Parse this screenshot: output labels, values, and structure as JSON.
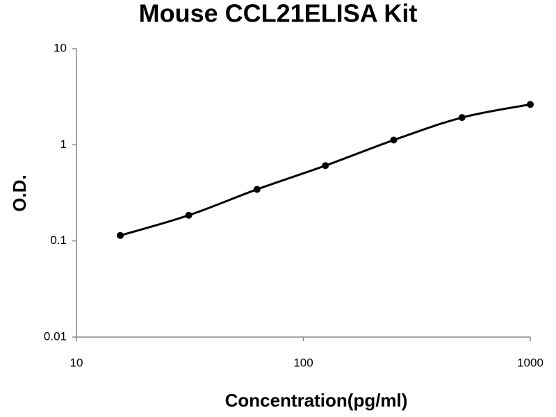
{
  "chart_data": {
    "type": "line",
    "title": "Mouse CCL21ELISA Kit",
    "x_label": "Concentration(pg/ml)",
    "y_label": "O.D.",
    "x": [
      15.6,
      31.25,
      62.5,
      125,
      250,
      500,
      1000
    ],
    "values": [
      0.114,
      0.185,
      0.344,
      0.607,
      1.12,
      1.92,
      2.63
    ],
    "color": "#000000",
    "x_log": true,
    "y_log": true,
    "xlim": [
      10,
      1000
    ],
    "xticks": [
      10,
      100,
      1000
    ],
    "ylim": [
      0.01,
      10
    ],
    "yticks": [
      0.01,
      0.1,
      1,
      10
    ],
    "grid": false
  }
}
